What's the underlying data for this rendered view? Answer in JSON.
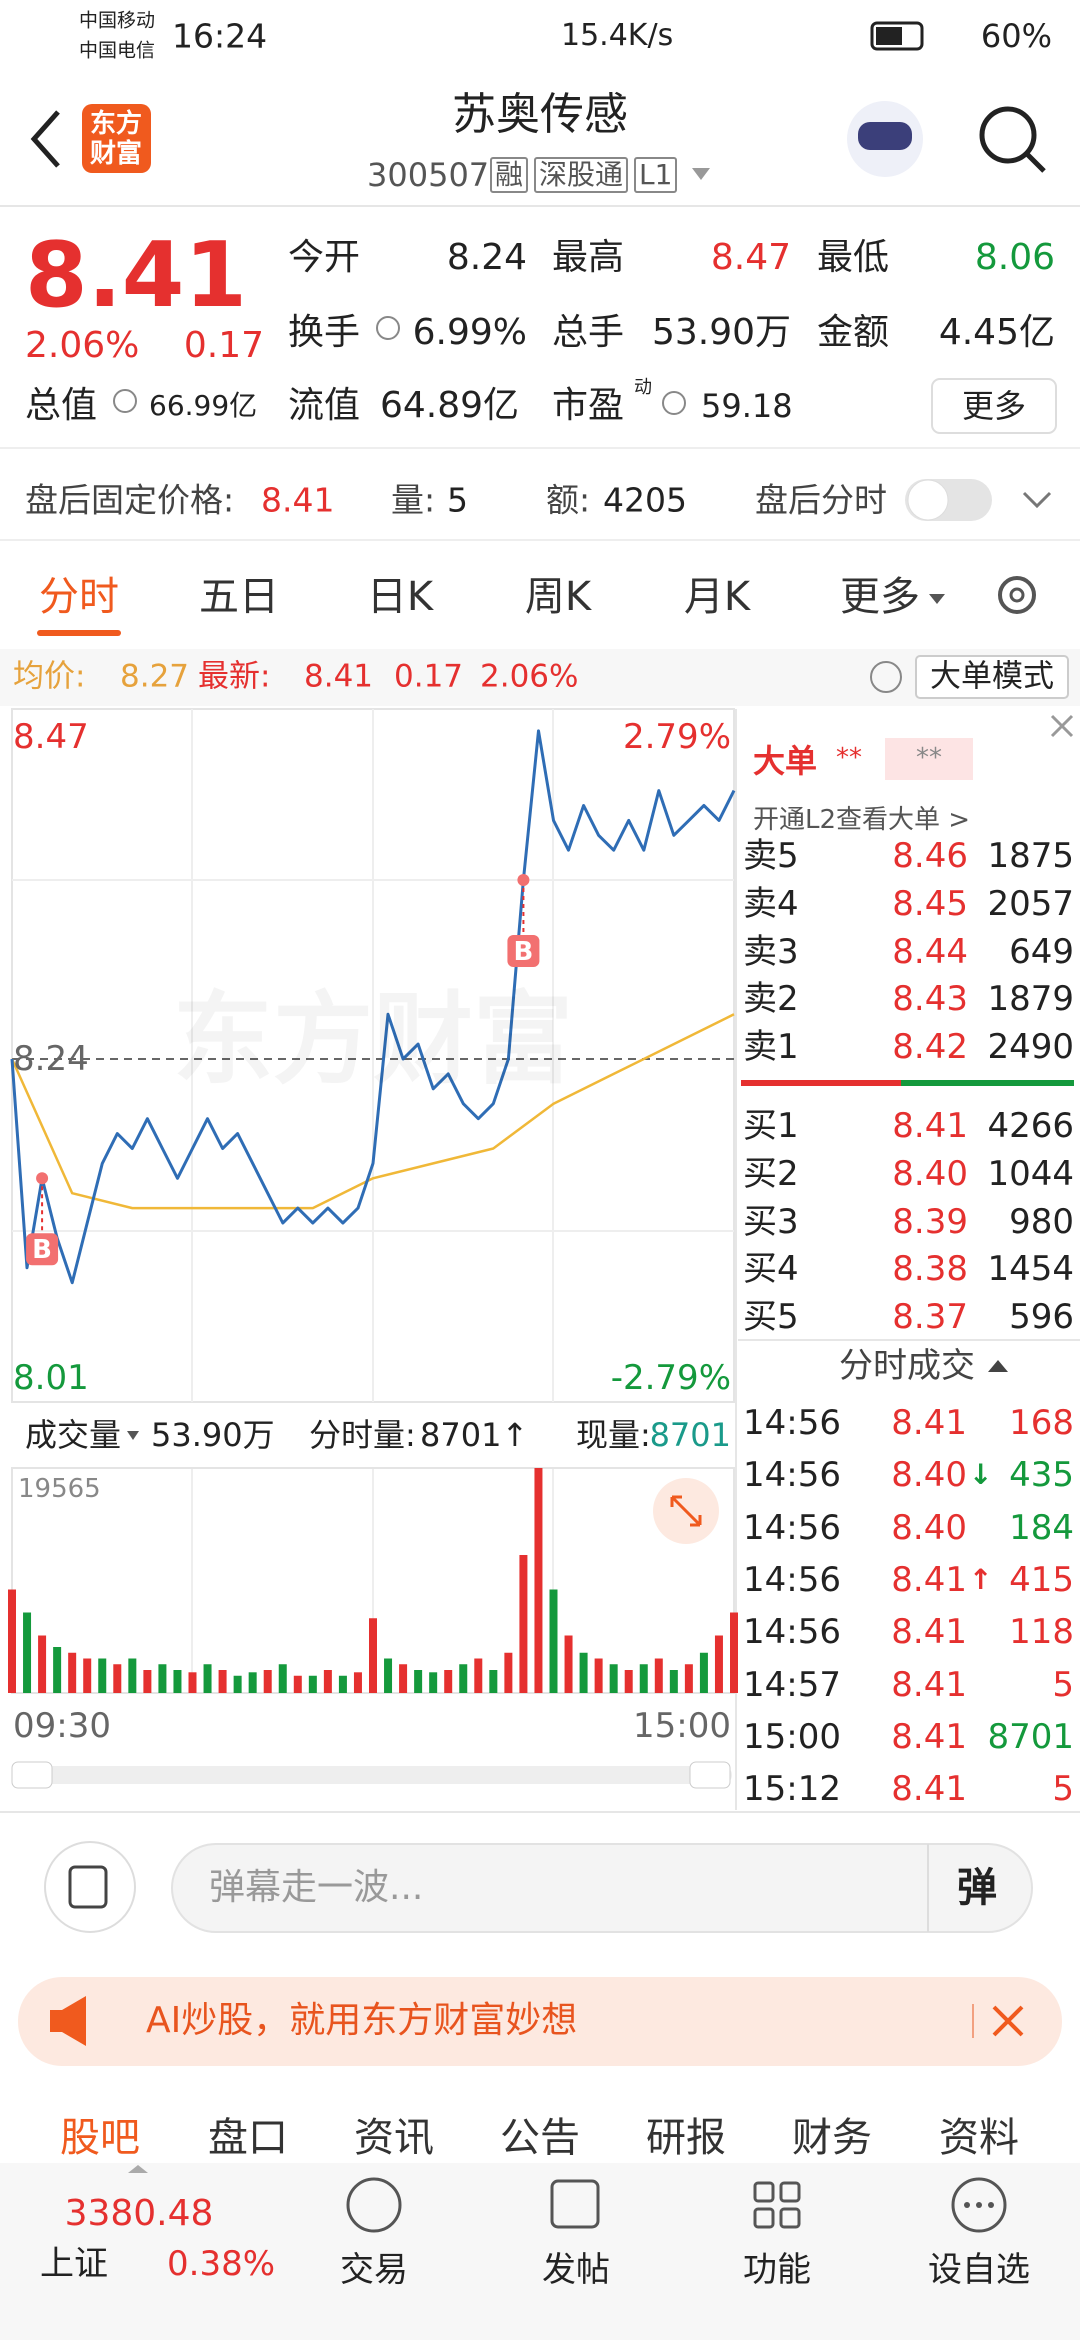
{
  "status_bar": {
    "carrier_1": "中国移动",
    "carrier_2": "中国电信",
    "time": "16:24",
    "net_speed": "15.4K/s",
    "battery": "60%"
  },
  "header": {
    "logo": [
      "东方",
      "财富"
    ],
    "title": "苏奥传感",
    "code": "300507",
    "tags": [
      "融",
      "深股通",
      "L1"
    ]
  },
  "quote": {
    "price": "8.41",
    "change_pct": "2.06%",
    "change": "0.17",
    "stats": [
      {
        "label": "今开",
        "value": "8.24"
      },
      {
        "label": "最高",
        "value": "8.47",
        "color": "#e5302f"
      },
      {
        "label": "最低",
        "value": "8.06",
        "color": "#14993c"
      },
      {
        "label": "换手",
        "value": "6.99%"
      },
      {
        "label": "总手",
        "value": "53.90万"
      },
      {
        "label": "金额",
        "value": "4.45亿"
      },
      {
        "label": "总值",
        "value": "66.99亿"
      },
      {
        "label": "流值",
        "value": "64.89亿"
      },
      {
        "label": "市盈",
        "sup": "动",
        "value": "59.18"
      }
    ],
    "more": "更多"
  },
  "after_hours": {
    "label": "盘后固定价格:",
    "price": "8.41",
    "volume_label": "量:",
    "volume": "5",
    "amount_label": "额:",
    "amount": "4205",
    "chart_toggle": "盘后分时"
  },
  "tabs": [
    "分时",
    "五日",
    "日K",
    "周K",
    "月K",
    "更多"
  ],
  "info_bar": {
    "avg_label": "均价:",
    "avg": "8.27",
    "latest_label": "最新:",
    "latest": "8.41",
    "change": "0.17",
    "change_pct": "2.06%",
    "mode_button": "大单模式"
  },
  "chart_data": {
    "type": "line",
    "watermark": "东方财富",
    "ylim": [
      8.01,
      8.47
    ],
    "yticks": [
      8.01,
      8.24,
      8.47
    ],
    "y2lim": [
      -2.79,
      2.79
    ],
    "y2ticks": [
      {
        "value": -2.79,
        "label": "-2.79%"
      },
      {
        "value": 2.79,
        "label": "2.79%"
      }
    ],
    "x_labels": [
      "09:30",
      "15:00"
    ],
    "color": "#2f6db5",
    "avg_color": "#f0b838",
    "price_values": [
      8.24,
      8.1,
      8.16,
      8.12,
      8.09,
      8.13,
      8.17,
      8.19,
      8.18,
      8.2,
      8.18,
      8.16,
      8.18,
      8.2,
      8.18,
      8.19,
      8.17,
      8.15,
      8.13,
      8.14,
      8.13,
      8.14,
      8.13,
      8.14,
      8.17,
      8.27,
      8.24,
      8.25,
      8.22,
      8.23,
      8.21,
      8.2,
      8.21,
      8.24,
      8.36,
      8.46,
      8.4,
      8.38,
      8.41,
      8.39,
      8.38,
      8.4,
      8.38,
      8.42,
      8.39,
      8.4,
      8.41,
      8.4,
      8.42
    ],
    "avg_values": [
      8.24,
      8.15,
      8.14,
      8.14,
      8.14,
      8.14,
      8.16,
      8.17,
      8.18,
      8.21,
      8.23,
      8.25,
      8.27
    ],
    "markers": [
      {
        "label": "B",
        "index": 2,
        "value": 8.16
      },
      {
        "label": "B",
        "index": 34,
        "value": 8.36
      }
    ],
    "volume": {
      "label": "成交量",
      "total": "53.90万",
      "minute_label": "分时量:",
      "minute": "8701↑",
      "current_label": "现量:",
      "current": "8701",
      "ylim": [
        0,
        19565
      ],
      "yticks": [
        19565
      ],
      "values": [
        9000,
        7000,
        5000,
        4000,
        3500,
        3000,
        3000,
        2500,
        3000,
        2000,
        2500,
        2000,
        1800,
        2500,
        2000,
        1500,
        1800,
        2000,
        2500,
        1500,
        1500,
        2000,
        1500,
        1800,
        6500,
        3000,
        2500,
        2000,
        1800,
        2000,
        2500,
        3000,
        2000,
        3500,
        12000,
        19565,
        9000,
        5000,
        3500,
        3000,
        2500,
        2000,
        2500,
        3000,
        2000,
        2500,
        3500,
        5000,
        7000
      ],
      "up": [
        true,
        false,
        true,
        false,
        true,
        true,
        false,
        true,
        false,
        true,
        false,
        false,
        true,
        false,
        true,
        false,
        false,
        true,
        false,
        true,
        false,
        true,
        false,
        true,
        true,
        false,
        true,
        false,
        false,
        true,
        false,
        true,
        false,
        true,
        true,
        true,
        false,
        true,
        false,
        true,
        false,
        true,
        false,
        true,
        false,
        true,
        false,
        true,
        true
      ],
      "up_color": "#e5302f",
      "down_color": "#14993c"
    }
  },
  "order_book": {
    "big_order_label": "大单",
    "big_order_value_1": "**",
    "big_order_value_2": "**",
    "l2_prompt": "开通L2查看大单 >",
    "asks": [
      {
        "label": "卖5",
        "price": "8.46",
        "volume": "1875"
      },
      {
        "label": "卖4",
        "price": "8.45",
        "volume": "2057"
      },
      {
        "label": "卖3",
        "price": "8.44",
        "volume": "649"
      },
      {
        "label": "卖2",
        "price": "8.43",
        "volume": "1879"
      },
      {
        "label": "卖1",
        "price": "8.42",
        "volume": "2490"
      }
    ],
    "bids": [
      {
        "label": "买1",
        "price": "8.41",
        "volume": "4266"
      },
      {
        "label": "买2",
        "price": "8.40",
        "volume": "1044"
      },
      {
        "label": "买3",
        "price": "8.39",
        "volume": "980"
      },
      {
        "label": "买4",
        "price": "8.38",
        "volume": "1454"
      },
      {
        "label": "买5",
        "price": "8.37",
        "volume": "596"
      }
    ],
    "trades_title": "分时成交",
    "trades": [
      {
        "time": "14:56",
        "price": "8.41",
        "volume": "168",
        "color": "#e5302f"
      },
      {
        "time": "14:56",
        "price": "8.40",
        "arrow": "↓",
        "arrow_color": "#14993c",
        "volume": "435",
        "color": "#14993c"
      },
      {
        "time": "14:56",
        "price": "8.40",
        "volume": "184",
        "color": "#14993c"
      },
      {
        "time": "14:56",
        "price": "8.41",
        "arrow": "↑",
        "arrow_color": "#e5302f",
        "volume": "415",
        "color": "#e5302f"
      },
      {
        "time": "14:56",
        "price": "8.41",
        "volume": "118",
        "color": "#e5302f"
      },
      {
        "time": "14:57",
        "price": "8.41",
        "volume": "5",
        "color": "#e5302f"
      },
      {
        "time": "15:00",
        "price": "8.41",
        "volume": "8701",
        "color": "#14993c"
      },
      {
        "time": "15:12",
        "price": "8.41",
        "volume": "5",
        "color": "#e5302f"
      }
    ]
  },
  "comment_bar": {
    "placeholder": "弹幕走一波...",
    "danmaku_button": "弹"
  },
  "banner": {
    "text": "AI炒股，就用东方财富妙想"
  },
  "bottom_tabs": [
    "股吧",
    "盘口",
    "资讯",
    "公告",
    "研报",
    "财务",
    "资料"
  ],
  "bottom_nav": {
    "index_value": "3380.48",
    "index_name": "上证",
    "index_change": "0.38%",
    "items": [
      "交易",
      "发帖",
      "功能",
      "设自选"
    ]
  }
}
